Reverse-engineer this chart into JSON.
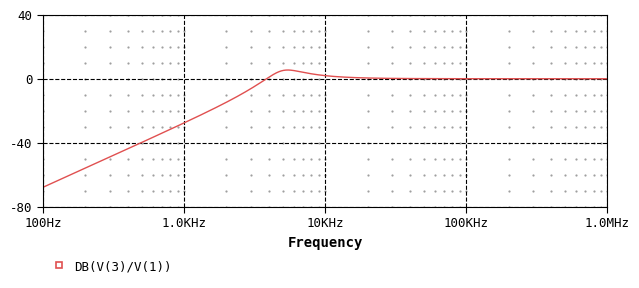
{
  "title": "",
  "xlabel": "Frequency",
  "ylabel": "",
  "xlim_hz": [
    100,
    1000000
  ],
  "ylim": [
    -80,
    40
  ],
  "yticks": [
    -80,
    -40,
    0,
    40
  ],
  "xtick_labels": [
    "100Hz",
    "1.0KHz",
    "10KHz",
    "100KHz",
    "1.0MHz"
  ],
  "xtick_values": [
    100,
    1000,
    10000,
    100000,
    1000000
  ],
  "line_color": "#e05050",
  "legend_label": "DB(V(3)/V(1))",
  "legend_marker_color": "#e05050",
  "background_color": "#ffffff",
  "grid_major_color": "#000000",
  "grid_minor_color": "#888888",
  "f0_hz": 5000,
  "Q": 1.8,
  "minor_dot_subs": [
    2,
    3,
    4,
    5,
    6,
    7,
    8,
    9
  ]
}
